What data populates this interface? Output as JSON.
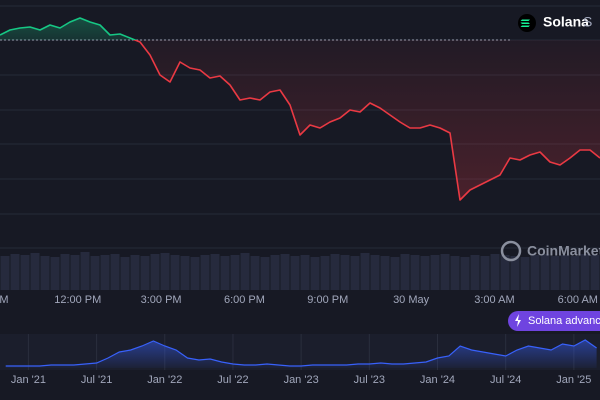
{
  "chart_data": {
    "type": "line",
    "title": "Solana",
    "symbol": "S",
    "watermark": "CoinMarketC",
    "badge": "Solana advances",
    "baseline": 210,
    "up_color": "#16c784",
    "down_color": "#ea3943",
    "grid": true,
    "ylim": [
      0,
      250
    ],
    "yticks": [
      2,
      36,
      71,
      106,
      140,
      175,
      210,
      244
    ],
    "xlim": [
      9.2,
      30.8
    ],
    "xticks": [
      {
        "value": 9,
        "label": "M"
      },
      {
        "value": 12,
        "label": "12:00 PM"
      },
      {
        "value": 15,
        "label": "3:00 PM"
      },
      {
        "value": 18,
        "label": "6:00 PM"
      },
      {
        "value": 21,
        "label": "9:00 PM"
      },
      {
        "value": 24,
        "label": "30 May"
      },
      {
        "value": 27,
        "label": "3:00 AM"
      },
      {
        "value": 30,
        "label": "6:00 AM"
      }
    ],
    "series": [
      {
        "x": [
          9.2,
          9.56,
          9.92,
          10.28,
          10.64,
          11,
          11.36,
          11.72,
          12.08,
          12.44,
          12.8,
          13.16,
          13.52,
          13.88,
          14.24,
          14.6,
          14.96,
          15.32,
          15.68,
          16.04,
          16.4,
          16.76,
          17.12,
          17.48,
          17.84,
          18.2,
          18.56,
          18.92,
          19.28,
          19.64,
          20,
          20.36,
          20.72,
          21.08,
          21.44,
          21.8,
          22.16,
          22.52,
          22.88,
          23.24,
          23.6,
          23.96,
          24.32,
          24.68,
          25.04,
          25.4,
          25.76,
          26.12,
          26.48,
          26.84,
          27.2,
          27.56,
          27.92,
          28.28,
          28.64,
          29,
          29.36,
          29.72,
          30.08,
          30.44,
          30.8
        ],
        "values": [
          215,
          220,
          222,
          223,
          220,
          225,
          222,
          228,
          232,
          228,
          225,
          215,
          216,
          212,
          208,
          195,
          175,
          168,
          188,
          182,
          180,
          172,
          174,
          165,
          150,
          152,
          150,
          158,
          160,
          145,
          115,
          125,
          122,
          128,
          132,
          140,
          138,
          147,
          142,
          135,
          128,
          122,
          122,
          125,
          122,
          117,
          50,
          60,
          65,
          70,
          75,
          92,
          90,
          95,
          98,
          88,
          85,
          92,
          100,
          100,
          92
        ]
      }
    ],
    "volume": {
      "color": "#262a3d",
      "ylim": [
        0,
        40
      ],
      "values": [
        34,
        36,
        35,
        37,
        34,
        33,
        36,
        35,
        38,
        34,
        35,
        36,
        33,
        35,
        34,
        36,
        37,
        35,
        34,
        33,
        35,
        36,
        34,
        35,
        37,
        34,
        33,
        35,
        36,
        34,
        35,
        33,
        34,
        36,
        35,
        34,
        37,
        35,
        34,
        33,
        36,
        35,
        34,
        35,
        36,
        34,
        33,
        35,
        34,
        36,
        35,
        34,
        33,
        35,
        36,
        34,
        35,
        34,
        36,
        35
      ]
    },
    "navigator": {
      "color": "#3861fb",
      "xlim": [
        -2.5,
        50.3
      ],
      "ylim": [
        0,
        40
      ],
      "xticks": [
        {
          "value": 0,
          "label": "Jan '21"
        },
        {
          "value": 6,
          "label": "Jul '21"
        },
        {
          "value": 12,
          "label": "Jan '22"
        },
        {
          "value": 18,
          "label": "Jul '22"
        },
        {
          "value": 24,
          "label": "Jan '23"
        },
        {
          "value": 30,
          "label": "Jul '23"
        },
        {
          "value": 36,
          "label": "Jan '24"
        },
        {
          "value": 42,
          "label": "Jul '24"
        },
        {
          "value": 48,
          "label": "Jan '25"
        }
      ],
      "x": [
        -2,
        -1,
        0,
        1,
        2,
        3,
        4,
        5,
        6,
        7,
        8,
        9,
        10,
        11,
        12,
        13,
        14,
        15,
        16,
        17,
        18,
        19,
        20,
        21,
        22,
        23,
        24,
        25,
        26,
        27,
        28,
        29,
        30,
        31,
        32,
        33,
        34,
        35,
        36,
        37,
        38,
        39,
        40,
        41,
        42,
        43,
        44,
        45,
        46,
        47,
        48,
        49,
        50
      ],
      "values": [
        2,
        2,
        2,
        2,
        3,
        3,
        3,
        4,
        5,
        10,
        16,
        18,
        22,
        27,
        22,
        18,
        10,
        8,
        9,
        6,
        4,
        3,
        3,
        4,
        3,
        2,
        2,
        3,
        3,
        3,
        3,
        4,
        4,
        5,
        4,
        4,
        5,
        6,
        10,
        12,
        22,
        18,
        16,
        14,
        12,
        18,
        22,
        20,
        18,
        24,
        22,
        28,
        20
      ]
    }
  }
}
